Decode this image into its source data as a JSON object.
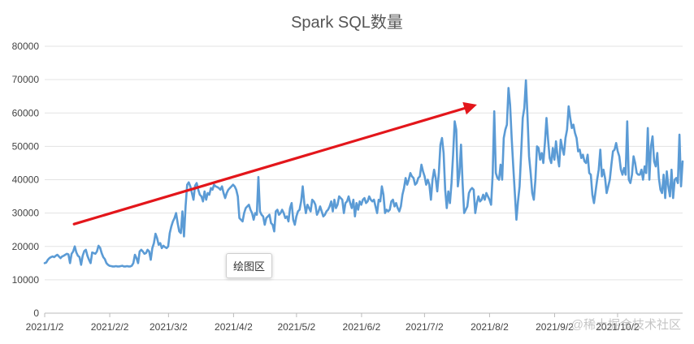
{
  "chart_data": {
    "type": "line",
    "title": "Spark SQL数量",
    "xlabel": "",
    "ylabel": "",
    "ylim": [
      0,
      80000
    ],
    "yticks": [
      0,
      10000,
      20000,
      30000,
      40000,
      50000,
      60000,
      70000,
      80000
    ],
    "xticks": [
      "2021/1/2",
      "2021/2/2",
      "2021/3/2",
      "2021/4/2",
      "2021/5/2",
      "2021/6/2",
      "2021/7/2",
      "2021/8/2",
      "2021/9/2",
      "2021/10/2"
    ],
    "grid": true,
    "legend": "none",
    "line_color": "#5b9bd5",
    "arrow_color": "#e3161b",
    "series": [
      {
        "x_start": "2021/1/2",
        "x_end": "2021/11/2",
        "values": [
          15000,
          15200,
          16000,
          16500,
          16800,
          17000,
          16800,
          17200,
          17500,
          17000,
          16500,
          17000,
          17200,
          17500,
          17800,
          17600,
          15000,
          17800,
          18500,
          20000,
          18200,
          17200,
          16800,
          14500,
          17200,
          18600,
          19000,
          17200,
          16000,
          15000,
          18200,
          18000,
          17800,
          18500,
          20200,
          19600,
          18000,
          16800,
          16200,
          15000,
          14500,
          14200,
          14100,
          14000,
          14000,
          14100,
          14000,
          14000,
          14100,
          14200,
          14000,
          14000,
          14100,
          14000,
          14000,
          14200,
          15000,
          17500,
          16500,
          15000,
          18500,
          19000,
          18500,
          17800,
          18000,
          19000,
          18500,
          16000,
          19500,
          21000,
          23800,
          22500,
          20500,
          21000,
          19500,
          20200,
          19800,
          19500,
          20000,
          24000,
          26000,
          27500,
          28500,
          30000,
          27000,
          24500,
          24000,
          30500,
          23000,
          32000,
          38500,
          39200,
          38000,
          36000,
          34000,
          38200,
          39000,
          37000,
          35500,
          35000,
          33500,
          36500,
          34000,
          36000,
          35500,
          37500,
          37000,
          38500,
          38000,
          37800,
          37500,
          37000,
          38000,
          36000,
          34500,
          36000,
          37000,
          37500,
          38000,
          38500,
          38000,
          37000,
          35000,
          28500,
          28000,
          27500,
          30000,
          31500,
          32000,
          32500,
          31000,
          30000,
          28000,
          30000,
          29500,
          40800,
          30500,
          29500,
          29000,
          26500,
          28500,
          29000,
          29500,
          27000,
          26500,
          24500,
          30500,
          31000,
          29500,
          30000,
          31000,
          30000,
          28500,
          29000,
          27500,
          31500,
          33000,
          28000,
          26500,
          29000,
          30500,
          31000,
          33500,
          38000,
          33000,
          30000,
          32500,
          31500,
          30500,
          34000,
          33500,
          32500,
          29500,
          30500,
          32000,
          30500,
          29000,
          29500,
          30500,
          31000,
          32000,
          33500,
          30500,
          34000,
          31500,
          32500,
          35000,
          34500,
          34000,
          30000,
          33000,
          33500,
          35000,
          33000,
          31500,
          34000,
          29000,
          33000,
          31000,
          33500,
          32500,
          34000,
          34500,
          33000,
          33500,
          35000,
          34000,
          33500,
          34000,
          32000,
          30000,
          34000,
          33500,
          38000,
          35500,
          30000,
          31000,
          30500,
          31000,
          33500,
          34000,
          32000,
          33000,
          31500,
          30500,
          32000,
          35500,
          37500,
          40500,
          38500,
          40000,
          42000,
          41000,
          40500,
          38500,
          39000,
          40500,
          41000,
          44500,
          42500,
          41000,
          38500,
          40000,
          38500,
          34000,
          40000,
          43000,
          40500,
          36500,
          42000,
          50500,
          52500,
          48000,
          37000,
          31500,
          36500,
          33000,
          39000,
          47500,
          57500,
          55000,
          38000,
          42000,
          50500,
          39000,
          30000,
          31000,
          32000,
          36000,
          37000,
          37500,
          37000,
          30000,
          33000,
          35000,
          33500,
          34000,
          35500,
          34000,
          36000,
          35000,
          34000,
          32500,
          41500,
          60500,
          42000,
          40500,
          40000,
          44500,
          40000,
          52500,
          55000,
          56500,
          67500,
          62500,
          52500,
          44000,
          36000,
          28000,
          33500,
          38000,
          48000,
          58500,
          61500,
          69800,
          59000,
          47000,
          42000,
          36000,
          34000,
          40000,
          50000,
          49500,
          46000,
          48000,
          45000,
          51000,
          58500,
          52000,
          46500,
          45000,
          49500,
          46000,
          51500,
          47000,
          44000,
          52000,
          49500,
          47500,
          52500,
          55000,
          62000,
          58500,
          55500,
          56500,
          54000,
          52500,
          48500,
          49000,
          46500,
          47500,
          45500,
          45000,
          47500,
          42000,
          41500,
          35500,
          33000,
          36500,
          40000,
          43000,
          49000,
          41000,
          43000,
          40500,
          36000,
          38000,
          40000,
          44500,
          48500,
          49000,
          51000,
          48500,
          47000,
          43000,
          41500,
          43500,
          41500,
          57500,
          40000,
          39000,
          41500,
          47000,
          45000,
          42000,
          41500,
          41500,
          43000,
          40000,
          44000,
          42000,
          55500,
          40000,
          50000,
          53000,
          45500,
          44000,
          48000,
          40500,
          37000,
          36000,
          41500,
          34500,
          42500,
          38000,
          35000,
          43000,
          34500,
          40000,
          40500,
          39000,
          53500,
          38000,
          45500
        ]
      }
    ],
    "annotations": [
      {
        "type": "arrow",
        "from": {
          "x": "2021/1/16",
          "y": 26700
        },
        "to": {
          "x": "2021/7/27",
          "y": 62500
        }
      }
    ]
  },
  "tooltip": {
    "label": "绘图区"
  },
  "watermark": {
    "text": "@稀土掘金技术社区"
  }
}
